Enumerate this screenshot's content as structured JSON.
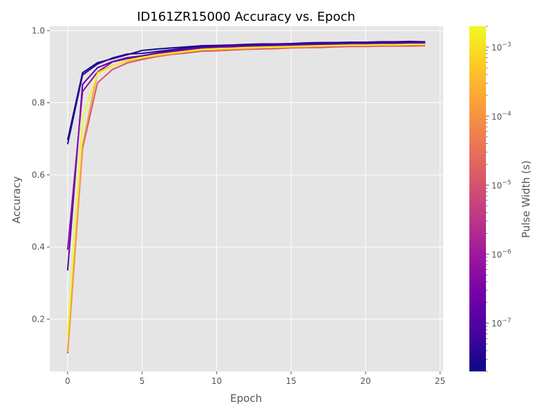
{
  "chart_data": {
    "type": "line",
    "title": "ID161ZR15000 Accuracy vs. Epoch",
    "xlabel": "Epoch",
    "ylabel": "Accuracy",
    "xlim": [
      -1.2,
      25.2
    ],
    "ylim": [
      0.055,
      1.012
    ],
    "xticks": [
      0,
      5,
      10,
      15,
      20,
      25
    ],
    "yticks": [
      0.2,
      0.4,
      0.6,
      0.8,
      1.0
    ],
    "xtick_labels": [
      "0",
      "5",
      "10",
      "15",
      "20",
      "25"
    ],
    "ytick_labels": [
      "0.2",
      "0.4",
      "0.6",
      "0.8",
      "1.0"
    ],
    "grid": true,
    "background": "#e5e5e5",
    "colorbar": {
      "label": "Pulse Width (s)",
      "scale": "log",
      "range": [
        2e-08,
        0.002
      ],
      "colormap": "plasma",
      "tick_labels": [
        {
          "exp": "-7",
          "value": 1e-07
        },
        {
          "exp": "-6",
          "value": 1e-06
        },
        {
          "exp": "-5",
          "value": 1e-05
        },
        {
          "exp": "-4",
          "value": 0.0001
        },
        {
          "exp": "-3",
          "value": 0.001
        }
      ],
      "tick_base": "10",
      "colors": [
        "#0d0887",
        "#46039f",
        "#7201a8",
        "#9c179e",
        "#bd3786",
        "#d8576b",
        "#ed7953",
        "#fb9f3a",
        "#fdca26",
        "#f0f921"
      ]
    },
    "x": [
      0,
      1,
      2,
      3,
      4,
      5,
      6,
      7,
      8,
      9,
      10,
      11,
      12,
      13,
      14,
      15,
      16,
      17,
      18,
      19,
      20,
      21,
      22,
      23,
      24
    ],
    "series": [
      {
        "color": "#0d0887",
        "values": [
          0.697,
          0.883,
          0.911,
          0.922,
          0.933,
          0.945,
          0.949,
          0.952,
          0.955,
          0.958,
          0.959,
          0.96,
          0.961,
          0.962,
          0.962,
          0.962,
          0.964,
          0.965,
          0.965,
          0.966,
          0.966,
          0.967,
          0.968,
          0.968,
          0.968
        ]
      },
      {
        "color": "#2a0593",
        "values": [
          0.685,
          0.877,
          0.907,
          0.924,
          0.935,
          0.937,
          0.942,
          0.947,
          0.952,
          0.956,
          0.958,
          0.96,
          0.962,
          0.963,
          0.963,
          0.964,
          0.966,
          0.967,
          0.967,
          0.968,
          0.968,
          0.969,
          0.969,
          0.97,
          0.969
        ]
      },
      {
        "color": "#5402a3",
        "values": [
          0.335,
          0.851,
          0.897,
          0.914,
          0.925,
          0.93,
          0.938,
          0.944,
          0.949,
          0.953,
          0.955,
          0.957,
          0.958,
          0.959,
          0.96,
          0.961,
          0.962,
          0.963,
          0.963,
          0.964,
          0.964,
          0.965,
          0.965,
          0.966,
          0.966
        ]
      },
      {
        "color": "#8b0aa5",
        "values": [
          0.392,
          0.831,
          0.885,
          0.913,
          0.922,
          0.926,
          0.934,
          0.94,
          0.946,
          0.95,
          0.952,
          0.954,
          0.955,
          0.956,
          0.957,
          0.958,
          0.959,
          0.96,
          0.96,
          0.961,
          0.961,
          0.962,
          0.962,
          0.963,
          0.963
        ]
      },
      {
        "color": "#d8576b",
        "values": [
          0.105,
          0.673,
          0.855,
          0.892,
          0.91,
          0.92,
          0.928,
          0.934,
          0.938,
          0.943,
          0.944,
          0.946,
          0.948,
          0.949,
          0.95,
          0.952,
          0.953,
          0.953,
          0.955,
          0.956,
          0.956,
          0.957,
          0.957,
          0.957,
          0.958
        ]
      },
      {
        "color": "#fb9f3a",
        "values": [
          0.11,
          0.682,
          0.884,
          0.903,
          0.915,
          0.924,
          0.93,
          0.936,
          0.941,
          0.946,
          0.947,
          0.949,
          0.95,
          0.952,
          0.953,
          0.954,
          0.955,
          0.957,
          0.958,
          0.959,
          0.959,
          0.96,
          0.96,
          0.961,
          0.961
        ]
      },
      {
        "color": "#f0f921",
        "values": [
          0.155,
          0.76,
          0.88,
          0.902,
          0.918,
          0.926,
          0.933,
          0.938,
          0.943,
          0.948,
          0.95,
          0.951,
          0.953,
          0.954,
          0.955,
          0.956,
          0.957,
          0.958,
          0.959,
          0.96,
          0.96,
          0.961,
          0.961,
          0.962,
          0.962
        ]
      }
    ]
  }
}
